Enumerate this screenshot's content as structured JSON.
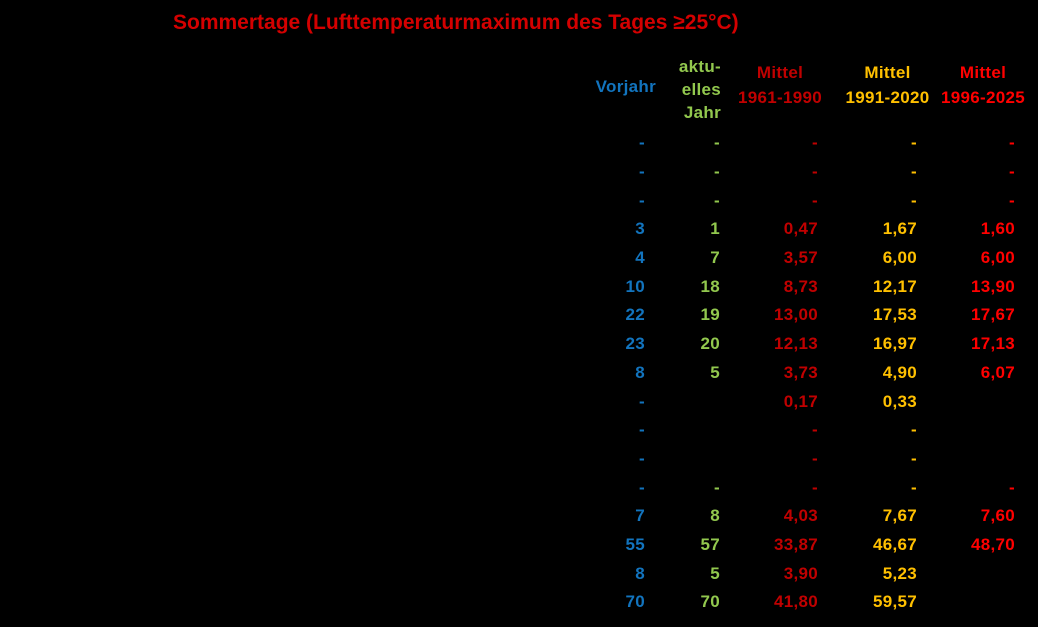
{
  "title": {
    "text": "Sommertage (Lufttemperaturmaximum des Tages ≥25°C)",
    "color": "#D40000"
  },
  "background": "#000000",
  "table": {
    "columns": [
      {
        "id": "vorjahr",
        "label": "Vorjahr",
        "header_lines": [
          "Vorjahr"
        ],
        "color": "#1274BE"
      },
      {
        "id": "aktuelles-jahr",
        "label": "aktuelles Jahr",
        "header_lines": [
          "aktu-",
          "elles",
          "Jahr"
        ],
        "color": "#92C84E"
      },
      {
        "id": "mittel-1961-1990",
        "label": "Mittel 1961-1990",
        "header_lines": [
          "Mittel",
          "1961-1990"
        ],
        "color": "#C00000"
      },
      {
        "id": "mittel-1991-2020",
        "label": "Mittel 1991-2020",
        "header_lines": [
          "Mittel",
          "1991-2020"
        ],
        "color": "#FFC000"
      },
      {
        "id": "mittel-1996-2025",
        "label": "Mittel 1996-2025",
        "header_lines": [
          "Mittel",
          "1996-2025"
        ],
        "color": "#FF0000"
      }
    ]
  },
  "chart_data": {
    "type": "table",
    "title": "Sommertage (Lufttemperaturmaximum des Tages ≥25°C)",
    "columns": [
      "Vorjahr",
      "aktuelles Jahr",
      "Mittel 1961-1990",
      "Mittel 1991-2020",
      "Mittel 1996-2025"
    ],
    "rows": [
      [
        "-",
        "-",
        "-",
        "-",
        "-"
      ],
      [
        "-",
        "-",
        "-",
        "-",
        "-"
      ],
      [
        "-",
        "-",
        "-",
        "-",
        "-"
      ],
      [
        "3",
        "1",
        "0,47",
        "1,67",
        "1,60"
      ],
      [
        "4",
        "7",
        "3,57",
        "6,00",
        "6,00"
      ],
      [
        "10",
        "18",
        "8,73",
        "12,17",
        "13,90"
      ],
      [
        "22",
        "19",
        "13,00",
        "17,53",
        "17,67"
      ],
      [
        "23",
        "20",
        "12,13",
        "16,97",
        "17,13"
      ],
      [
        "8",
        "5",
        "3,73",
        "4,90",
        "6,07"
      ],
      [
        "-",
        "",
        "0,17",
        "0,33",
        ""
      ],
      [
        "-",
        "",
        "-",
        "-",
        ""
      ],
      [
        "-",
        "",
        "-",
        "-",
        ""
      ],
      [
        "-",
        "-",
        "-",
        "-",
        "-"
      ],
      [
        "7",
        "8",
        "4,03",
        "7,67",
        "7,60"
      ],
      [
        "55",
        "57",
        "33,87",
        "46,67",
        "48,70"
      ],
      [
        "8",
        "5",
        "3,90",
        "5,23",
        ""
      ],
      [
        "70",
        "70",
        "41,80",
        "59,57",
        ""
      ]
    ],
    "legend_position": "none",
    "grid": false
  }
}
